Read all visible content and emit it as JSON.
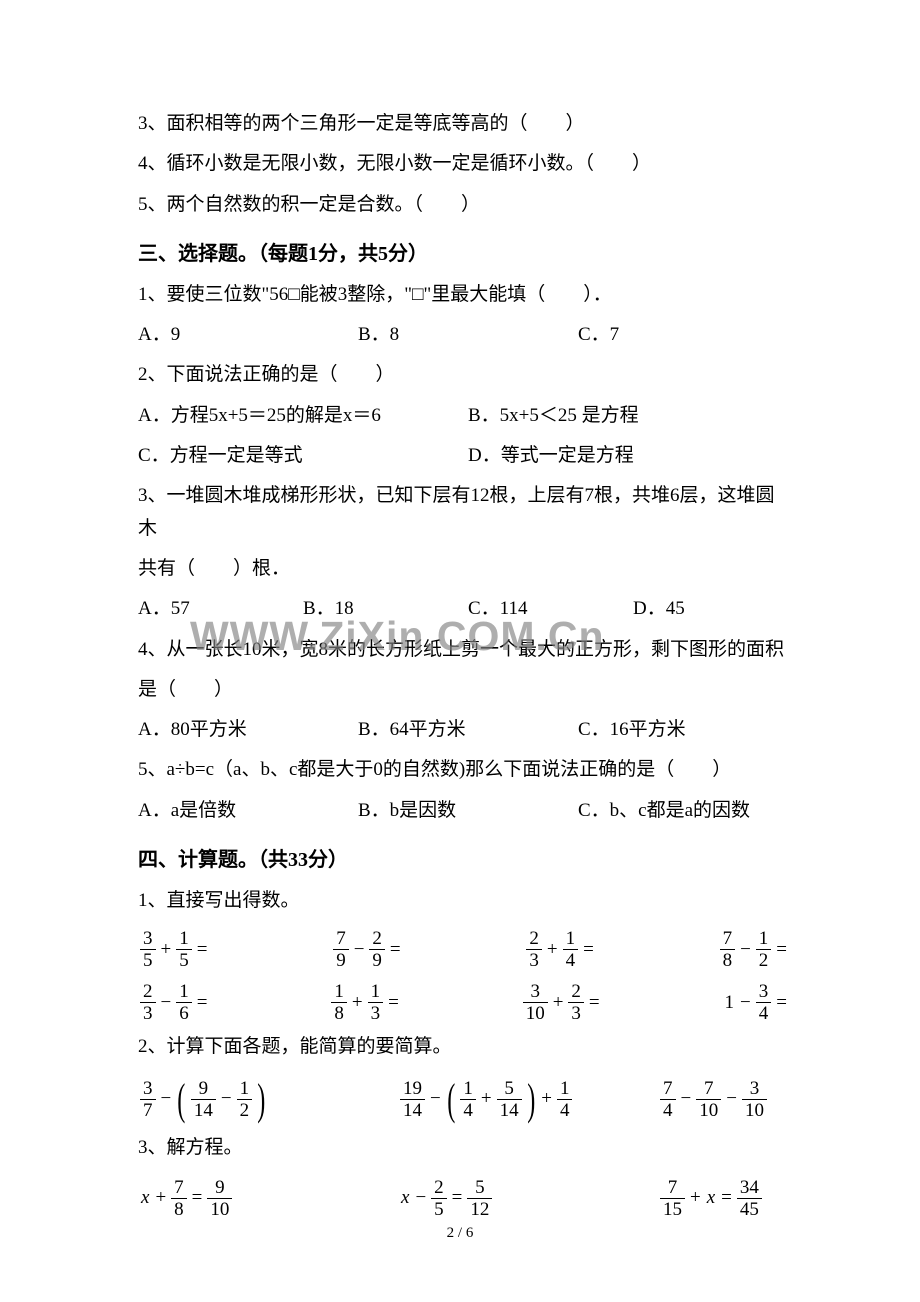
{
  "tf": {
    "q3": "3、面积相等的两个三角形一定是等底等高的（　　）",
    "q4": "4、循环小数是无限小数，无限小数一定是循环小数。（　　）",
    "q5": "5、两个自然数的积一定是合数。（　　）"
  },
  "sec3": {
    "title": "三、选择题。（每题1分，共5分）",
    "q1": {
      "stem": "1、要使三位数\"56□能被3整除，\"□\"里最大能填（　　）．",
      "a": "A．9",
      "b": "B．8",
      "c": "C．7"
    },
    "q2": {
      "stem": "2、下面说法正确的是（　　）",
      "a": "A．方程5x+5＝25的解是x＝6",
      "b": "B．5x+5＜25 是方程",
      "c": "C．方程一定是等式",
      "d": "D．等式一定是方程"
    },
    "q3": {
      "stem1": "3、一堆圆木堆成梯形形状，已知下层有12根，上层有7根，共堆6层，这堆圆木",
      "stem2": "共有（　　）根．",
      "a": "A．57",
      "b": "B．18",
      "c": "C．114",
      "d": "D．45"
    },
    "q4": {
      "stem1": "4、从一张长10米，宽8米的长方形纸上剪一个最大的正方形，剩下图形的面积",
      "stem2": "是（　　）",
      "a": "A．80平方米",
      "b": "B．64平方米",
      "c": "C．16平方米"
    },
    "q5": {
      "stem": "5、a÷b=c（a、b、c都是大于0的自然数)那么下面说法正确的是（　　）",
      "a": "A．a是倍数",
      "b": "B．b是因数",
      "c": "C．b、c都是a的因数"
    }
  },
  "sec4": {
    "title": "四、计算题。（共33分）",
    "p1": "1、直接写出得数。",
    "p2": "2、计算下面各题，能简算的要简算。",
    "p3": "3、解方程。"
  },
  "calc": {
    "r1": [
      {
        "a": "3",
        "b": "5",
        "op": "+",
        "c": "1",
        "d": "5"
      },
      {
        "a": "7",
        "b": "9",
        "op": "−",
        "c": "2",
        "d": "9"
      },
      {
        "a": "2",
        "b": "3",
        "op": "+",
        "c": "1",
        "d": "4"
      },
      {
        "a": "7",
        "b": "8",
        "op": "−",
        "c": "1",
        "d": "2"
      }
    ],
    "r2": [
      {
        "a": "2",
        "b": "3",
        "op": "−",
        "c": "1",
        "d": "6"
      },
      {
        "a": "1",
        "b": "8",
        "op": "+",
        "c": "1",
        "d": "3"
      },
      {
        "a": "3",
        "b": "10",
        "op": "+",
        "c": "2",
        "d": "3"
      },
      {
        "one": "1",
        "op": "−",
        "c": "3",
        "d": "4"
      }
    ]
  },
  "comp": {
    "e1": {
      "a": "3",
      "b": "7",
      "c": "9",
      "d": "14",
      "e": "1",
      "f": "2"
    },
    "e2": {
      "a": "19",
      "b": "14",
      "c": "1",
      "d": "4",
      "e": "5",
      "f": "14",
      "g": "1",
      "h": "4"
    },
    "e3": {
      "a": "7",
      "b": "4",
      "c": "7",
      "d": "10",
      "e": "3",
      "f": "10"
    }
  },
  "solve": {
    "e1": {
      "x": "x",
      "a": "7",
      "b": "8",
      "c": "9",
      "d": "10"
    },
    "e2": {
      "x": "x",
      "a": "2",
      "b": "5",
      "c": "5",
      "d": "12"
    },
    "e3": {
      "a": "7",
      "b": "15",
      "x": "x",
      "c": "34",
      "d": "45"
    }
  },
  "watermark": "WWW.ZiXin.COM.Cn",
  "footer": "2 / 6"
}
